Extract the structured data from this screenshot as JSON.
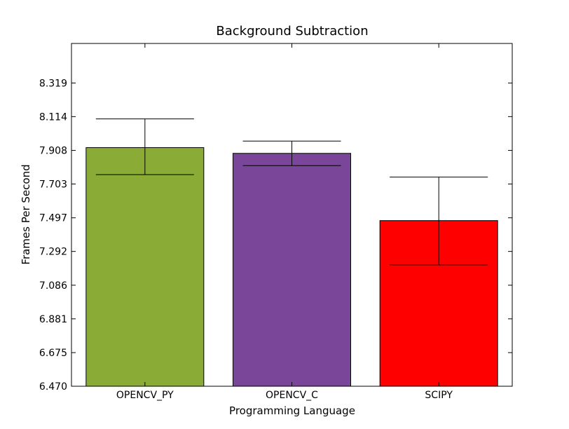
{
  "chart_data": {
    "type": "bar",
    "title": "Background Subtraction",
    "xlabel": "Programming Language",
    "ylabel": "Frames Per Second",
    "ylim": [
      6.47,
      8.56
    ],
    "yticks": [
      "6.470",
      "6.675",
      "6.881",
      "7.086",
      "7.292",
      "7.497",
      "7.703",
      "7.908",
      "8.114",
      "8.319"
    ],
    "categories": [
      "OPENCV_PY",
      "OPENCV_C",
      "SCIPY"
    ],
    "values": [
      7.925,
      7.89,
      7.48
    ],
    "error_low": [
      7.76,
      7.815,
      7.21
    ],
    "error_high": [
      8.1,
      7.965,
      7.745
    ],
    "colors": [
      "#8aab35",
      "#7a4699",
      "#ff0000"
    ],
    "grid": false,
    "legend": "none"
  }
}
